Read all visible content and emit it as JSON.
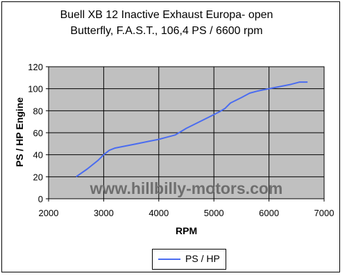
{
  "chart_data": {
    "type": "line",
    "title_lines": [
      "Buell XB 12 Inactive Exhaust Europa- open",
      "Butterfly, F.A.S.T., 106,4 PS / 6600 rpm"
    ],
    "xlabel": "RPM",
    "ylabel": "PS / HP Engine",
    "xlim": [
      2000,
      7000
    ],
    "ylim": [
      0,
      120
    ],
    "xticks": [
      2000,
      3000,
      4000,
      5000,
      6000,
      7000
    ],
    "yticks": [
      0,
      20,
      40,
      60,
      80,
      100,
      120
    ],
    "grid": true,
    "legend": "bottom",
    "watermark": "www.hillbilly-motors.com",
    "colors": {
      "plot_bg": "#c0c0c0",
      "line": "#4a6cf0",
      "grid": "#000000"
    },
    "series": [
      {
        "name": "PS / HP",
        "x": [
          2500,
          2700,
          2900,
          3000,
          3100,
          3200,
          3400,
          3600,
          3800,
          4000,
          4150,
          4300,
          4500,
          4700,
          4900,
          5100,
          5200,
          5300,
          5500,
          5650,
          5800,
          6000,
          6200,
          6400,
          6550,
          6700
        ],
        "y": [
          20,
          27,
          35,
          40,
          44,
          46,
          48,
          50,
          52,
          54,
          56,
          58,
          64,
          69,
          74,
          79,
          82,
          87,
          92,
          96,
          98,
          100,
          102,
          104,
          106,
          106
        ]
      }
    ]
  }
}
